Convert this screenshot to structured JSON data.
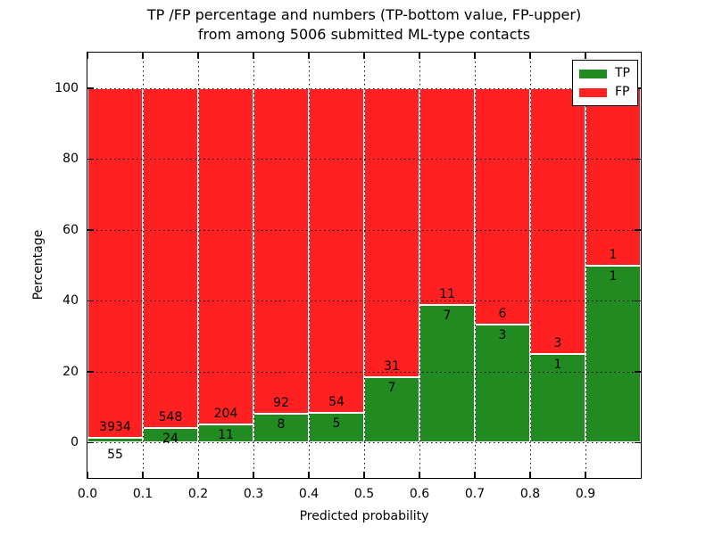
{
  "colors": {
    "tp": "#218a21",
    "fp": "#ff2121",
    "background": "#ffffff",
    "grid": "#000000",
    "bar_edge": "#ffffff"
  },
  "chart_data": {
    "type": "bar",
    "stacked": true,
    "title_line1": "TP /FP percentage and numbers (TP-bottom value, FP-upper)",
    "title_line2": "from among 5006 submitted ML-type contacts",
    "xlabel": "Predicted probability",
    "ylabel": "Percentage",
    "xlim": [
      0.0,
      1.0
    ],
    "ylim": [
      -10,
      110
    ],
    "grid": "dotted",
    "yticks": [
      {
        "v": 0,
        "label": "0"
      },
      {
        "v": 20,
        "label": "20"
      },
      {
        "v": 40,
        "label": "40"
      },
      {
        "v": 60,
        "label": "60"
      },
      {
        "v": 80,
        "label": "80"
      },
      {
        "v": 100,
        "label": "100"
      }
    ],
    "xticks": [
      {
        "v": 0.0,
        "label": "0.0"
      },
      {
        "v": 0.1,
        "label": "0.1"
      },
      {
        "v": 0.2,
        "label": "0.2"
      },
      {
        "v": 0.3,
        "label": "0.3"
      },
      {
        "v": 0.4,
        "label": "0.4"
      },
      {
        "v": 0.5,
        "label": "0.5"
      },
      {
        "v": 0.6,
        "label": "0.6"
      },
      {
        "v": 0.7,
        "label": "0.7"
      },
      {
        "v": 0.8,
        "label": "0.8"
      },
      {
        "v": 0.9,
        "label": "0.9"
      }
    ],
    "legend": {
      "position": "upper right",
      "entries": [
        {
          "label": "TP",
          "color_key": "tp"
        },
        {
          "label": "FP",
          "color_key": "fp"
        }
      ]
    },
    "value_semantics": "Each 0.1-wide bin is normalized to 100%; green = TP share (bottom), red = FP share (top). Numbers printed are raw TP (lower) and FP (upper) counts.",
    "bins": [
      {
        "range": [
          0.0,
          0.1
        ],
        "tp": 55,
        "fp": 3934,
        "tp_percent": 1.4
      },
      {
        "range": [
          0.1,
          0.2
        ],
        "tp": 24,
        "fp": 548,
        "tp_percent": 4.2
      },
      {
        "range": [
          0.2,
          0.3
        ],
        "tp": 11,
        "fp": 204,
        "tp_percent": 5.1
      },
      {
        "range": [
          0.3,
          0.4
        ],
        "tp": 8,
        "fp": 92,
        "tp_percent": 8.0
      },
      {
        "range": [
          0.4,
          0.5
        ],
        "tp": 5,
        "fp": 54,
        "tp_percent": 8.5
      },
      {
        "range": [
          0.5,
          0.6
        ],
        "tp": 7,
        "fp": 31,
        "tp_percent": 18.4
      },
      {
        "range": [
          0.6,
          0.7
        ],
        "tp": 7,
        "fp": 11,
        "tp_percent": 38.9
      },
      {
        "range": [
          0.7,
          0.8
        ],
        "tp": 3,
        "fp": 6,
        "tp_percent": 33.3
      },
      {
        "range": [
          0.8,
          0.9
        ],
        "tp": 1,
        "fp": 3,
        "tp_percent": 25.0
      },
      {
        "range": [
          0.9,
          1.0
        ],
        "tp": 1,
        "fp": 1,
        "tp_percent": 50.0
      }
    ]
  }
}
